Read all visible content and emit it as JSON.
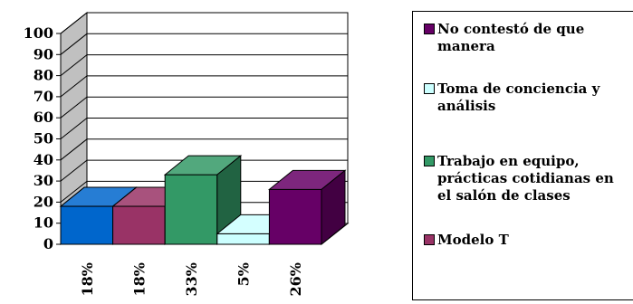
{
  "chart_data": {
    "type": "bar",
    "categories": [
      "18%",
      "18%",
      "33%",
      "5%",
      "26%"
    ],
    "values": [
      18,
      18,
      33,
      5,
      26
    ],
    "bar_colors": [
      "#0066cc",
      "#993366",
      "#339966",
      "#ccffff",
      "#660066"
    ],
    "ylim": [
      0,
      100
    ],
    "yticks": [
      "0",
      "10",
      "20",
      "30",
      "40",
      "50",
      "60",
      "70",
      "80",
      "90",
      "100"
    ],
    "grid": true,
    "legend_position": "right"
  },
  "legend": [
    {
      "label": "No contestó de que manera",
      "color": "#660066"
    },
    {
      "label": "Toma de conciencia y análisis",
      "color": "#ccffff"
    },
    {
      "label": "Trabajo en equipo, prácticas cotidianas en el salón de clases",
      "color": "#339966"
    },
    {
      "label": "Modelo T",
      "color": "#993366"
    }
  ]
}
